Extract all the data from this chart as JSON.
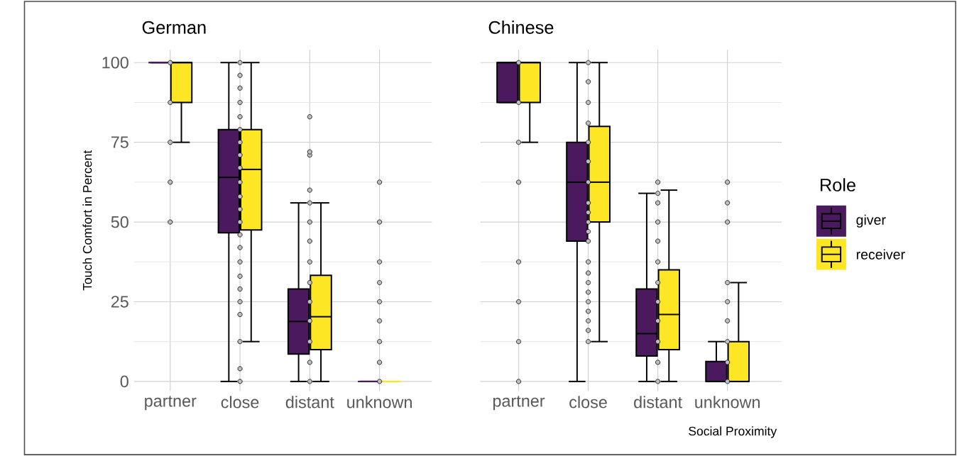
{
  "chart_data": [
    {
      "type": "box",
      "title": "German",
      "ylabel": "Touch Comfort in Percent",
      "categories": [
        "partner",
        "close",
        "distant",
        "unknown"
      ],
      "ylim": [
        -3,
        104
      ],
      "yticks": [
        0,
        25,
        50,
        75,
        100
      ],
      "grid": true,
      "series": [
        {
          "color": "#4b1a5e",
          "boxes": [
            {
              "low": 100,
              "q1": 100,
              "median": 100,
              "q3": 100,
              "high": 100
            },
            {
              "low": 0,
              "q1": 46.6,
              "median": 64,
              "q3": 79,
              "high": 100
            },
            {
              "low": 0,
              "q1": 8.6,
              "median": 18.8,
              "q3": 29,
              "high": 56
            },
            {
              "low": 0,
              "q1": 0,
              "median": 0,
              "q3": 0,
              "high": 0
            }
          ]
        },
        {
          "color": "#fde725",
          "boxes": [
            {
              "low": 75,
              "q1": 87.5,
              "median": 100,
              "q3": 100,
              "high": 100
            },
            {
              "low": 12.5,
              "q1": 47.5,
              "median": 66.5,
              "q3": 79,
              "high": 100
            },
            {
              "low": 0,
              "q1": 10,
              "median": 20.3,
              "q3": 33.3,
              "high": 56
            },
            {
              "low": 0,
              "q1": 0,
              "median": 0,
              "q3": 0,
              "high": 0
            }
          ]
        },
        {
          "type": "scatter",
          "color": "#bebebe",
          "x": [
            "partner",
            "partner",
            "partner",
            "partner",
            "partner",
            "close",
            "close",
            "close",
            "close",
            "close",
            "close",
            "close",
            "close",
            "close",
            "close",
            "close",
            "close",
            "close",
            "close",
            "close",
            "close",
            "close",
            "close",
            "close",
            "close",
            "close",
            "close",
            "close",
            "distant",
            "distant",
            "distant",
            "distant",
            "distant",
            "distant",
            "distant",
            "distant",
            "distant",
            "distant",
            "distant",
            "distant",
            "distant",
            "distant",
            "unknown",
            "unknown",
            "unknown",
            "unknown",
            "unknown",
            "unknown",
            "unknown",
            "unknown",
            "unknown"
          ],
          "values": [
            100,
            87.5,
            75,
            62.5,
            50,
            0,
            4,
            12.5,
            21,
            25,
            29,
            33,
            37.5,
            42,
            46,
            50,
            54,
            58,
            62.5,
            67,
            71,
            75,
            79,
            83,
            87.5,
            92,
            96,
            100,
            0,
            6,
            12.5,
            19,
            25,
            31,
            37.5,
            44,
            50,
            56,
            60,
            71,
            72,
            83,
            0,
            6,
            12.5,
            19,
            25,
            31,
            37.5,
            50,
            62.5
          ]
        }
      ]
    },
    {
      "type": "box",
      "title": "Chinese",
      "xlabel": "Social Proximity",
      "legend_title": "Role",
      "legend": "right",
      "tick_labels": "x",
      "categories": [
        "partner",
        "close",
        "distant",
        "unknown"
      ],
      "ylim": [
        -3,
        104
      ],
      "yticks": [
        0,
        25,
        50,
        75,
        100
      ],
      "grid": true,
      "series": [
        {
          "name": "giver",
          "color": "#4b1a5e",
          "boxes": [
            {
              "low": 87.5,
              "q1": 87.5,
              "median": 100,
              "q3": 100,
              "high": 100
            },
            {
              "low": 0,
              "q1": 44,
              "median": 62.5,
              "q3": 75,
              "high": 100
            },
            {
              "low": 0,
              "q1": 8,
              "median": 15,
              "q3": 29,
              "high": 59
            },
            {
              "low": 0,
              "q1": 0,
              "median": 0,
              "q3": 6.25,
              "high": 12.5
            }
          ]
        },
        {
          "name": "receiver",
          "color": "#fde725",
          "boxes": [
            {
              "low": 75,
              "q1": 87.5,
              "median": 100,
              "q3": 100,
              "high": 100
            },
            {
              "low": 12.5,
              "q1": 50,
              "median": 62.5,
              "q3": 80,
              "high": 100
            },
            {
              "low": 0,
              "q1": 10,
              "median": 21,
              "q3": 35,
              "high": 60
            },
            {
              "low": 0,
              "q1": 0,
              "median": 0,
              "q3": 12.5,
              "high": 31
            }
          ]
        },
        {
          "type": "scatter",
          "color": "#bebebe",
          "x": [
            "partner",
            "partner",
            "partner",
            "partner",
            "partner",
            "partner",
            "partner",
            "partner",
            "close",
            "close",
            "close",
            "close",
            "close",
            "close",
            "close",
            "close",
            "close",
            "close",
            "close",
            "close",
            "close",
            "close",
            "close",
            "close",
            "close",
            "close",
            "close",
            "close",
            "close",
            "distant",
            "distant",
            "distant",
            "distant",
            "distant",
            "distant",
            "distant",
            "distant",
            "distant",
            "distant",
            "distant",
            "distant",
            "unknown",
            "unknown",
            "unknown",
            "unknown",
            "unknown",
            "unknown",
            "unknown",
            "unknown",
            "unknown"
          ],
          "values": [
            100,
            87.5,
            75,
            62.5,
            37.5,
            25,
            12.5,
            0,
            12.5,
            19,
            25,
            31,
            37.5,
            44,
            50,
            56,
            62.5,
            69,
            75,
            81,
            87.5,
            94,
            100,
            16,
            22,
            28,
            34,
            47,
            53,
            0,
            6,
            12.5,
            19,
            25,
            31,
            37.5,
            44,
            50,
            56,
            59,
            62.5,
            0,
            6,
            12.5,
            19,
            25,
            31,
            50,
            56,
            62.5
          ]
        }
      ]
    }
  ]
}
